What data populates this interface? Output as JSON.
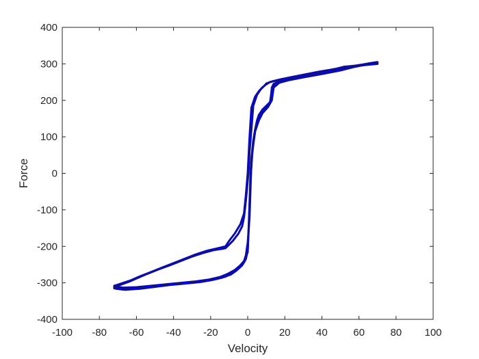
{
  "chart_data": {
    "type": "line",
    "title": "",
    "xlabel": "Velocity",
    "ylabel": "Force",
    "xlim": [
      -100,
      100
    ],
    "ylim": [
      -400,
      400
    ],
    "xticks": [
      -100,
      -80,
      -60,
      -40,
      -20,
      0,
      20,
      40,
      60,
      80,
      100
    ],
    "yticks": [
      -400,
      -300,
      -200,
      -100,
      0,
      100,
      200,
      300,
      400
    ],
    "grid": false,
    "legend": "none",
    "line_color": "#0000ff",
    "edge_color": "#1a1a4d",
    "series": [
      {
        "x": [
          70,
          65,
          58,
          52,
          48,
          44,
          40,
          36,
          33,
          28,
          22,
          16,
          12,
          10,
          9,
          7,
          5,
          3,
          2,
          1,
          0.5,
          0,
          -0.5,
          -1,
          -1.5,
          -2,
          -3,
          -5,
          -8,
          -11,
          -12,
          -14,
          -18,
          -24,
          -30,
          -36,
          -42,
          -48,
          -54,
          -60,
          -64,
          -68,
          -70,
          -72
        ],
        "y": [
          303,
          300,
          295,
          292,
          287,
          283,
          280,
          276,
          273,
          268,
          262,
          255,
          250,
          246,
          240,
          230,
          215,
          185,
          120,
          60,
          10,
          -20,
          -50,
          -75,
          -100,
          -120,
          -145,
          -165,
          -185,
          -200,
          -205,
          -207,
          -210,
          -218,
          -228,
          -240,
          -252,
          -263,
          -275,
          -288,
          -297,
          -304,
          -308,
          -312
        ]
      },
      {
        "x": [
          -72,
          -68,
          -62,
          -55,
          -48,
          -40,
          -32,
          -24,
          -18,
          -12,
          -8,
          -5,
          -3,
          -1,
          0,
          0.5,
          1,
          1.5,
          2,
          3,
          4,
          5,
          6,
          8,
          10,
          12,
          12.5,
          13,
          14,
          16,
          20,
          26,
          32,
          38,
          44,
          50,
          56,
          62,
          66,
          70
        ],
        "y": [
          -315,
          -318,
          -317,
          -313,
          -308,
          -303,
          -300,
          -296,
          -291,
          -283,
          -272,
          -258,
          -248,
          -235,
          -210,
          -150,
          -80,
          0,
          40,
          90,
          120,
          145,
          160,
          175,
          185,
          195,
          205,
          235,
          245,
          250,
          256,
          262,
          268,
          274,
          280,
          287,
          293,
          298,
          302,
          305
        ]
      },
      {
        "x": [
          -72,
          -67,
          -60,
          -52,
          -44,
          -36,
          -28,
          -21,
          -15,
          -11,
          -7,
          -4,
          -2,
          -1,
          0,
          1,
          1.5,
          2,
          3,
          4,
          6,
          8,
          11,
          13,
          14,
          17,
          22,
          30,
          40,
          50,
          58,
          64,
          70
        ],
        "y": [
          -310,
          -313,
          -312,
          -308,
          -304,
          -300,
          -296,
          -291,
          -284,
          -276,
          -265,
          -252,
          -240,
          -225,
          -190,
          -120,
          -40,
          30,
          80,
          115,
          145,
          165,
          182,
          200,
          235,
          248,
          255,
          263,
          272,
          282,
          292,
          298,
          301
        ]
      },
      {
        "x": [
          70,
          62,
          54,
          46,
          38,
          30,
          24,
          18,
          14,
          12,
          10,
          8,
          6,
          4,
          2,
          1,
          0,
          -1,
          -2,
          -4,
          -7,
          -10,
          -12,
          -16,
          -22,
          -28,
          -34,
          -40,
          -46,
          -52,
          -58,
          -63,
          -67,
          -70,
          -72
        ],
        "y": [
          300,
          296,
          290,
          284,
          278,
          270,
          264,
          258,
          253,
          250,
          244,
          236,
          225,
          210,
          180,
          100,
          0,
          -60,
          -110,
          -140,
          -165,
          -185,
          -200,
          -205,
          -212,
          -222,
          -234,
          -246,
          -258,
          -270,
          -282,
          -293,
          -300,
          -305,
          -308
        ]
      },
      {
        "x": [
          -71,
          -66,
          -58,
          -50,
          -42,
          -34,
          -26,
          -20,
          -14,
          -9,
          -6,
          -3,
          -1.5,
          0,
          0.8,
          1.5,
          2.5,
          4,
          6,
          9,
          12,
          13,
          15,
          20,
          28,
          36,
          44,
          52,
          60,
          66,
          69
        ],
        "y": [
          -316,
          -319,
          -316,
          -311,
          -306,
          -302,
          -298,
          -293,
          -286,
          -277,
          -266,
          -252,
          -240,
          -215,
          -120,
          -20,
          60,
          115,
          150,
          175,
          192,
          230,
          247,
          254,
          262,
          270,
          278,
          287,
          296,
          301,
          304
        ]
      }
    ]
  }
}
